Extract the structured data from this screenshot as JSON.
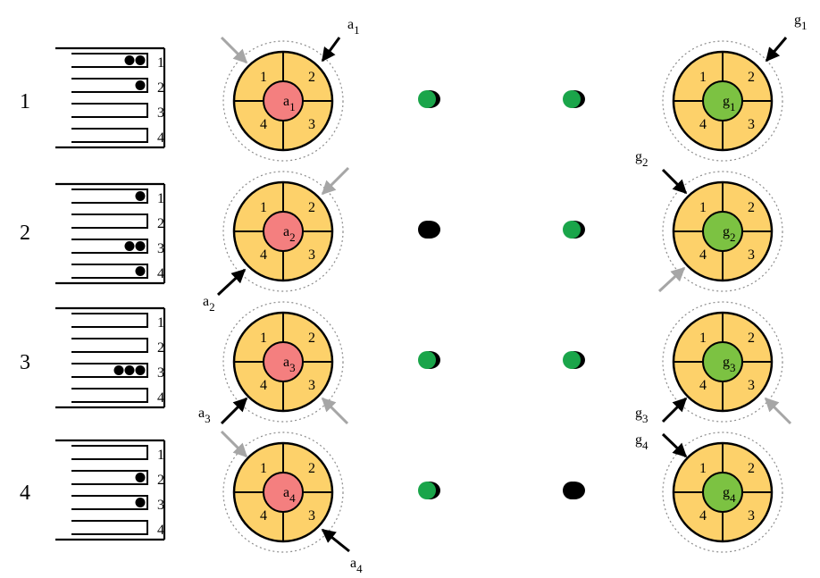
{
  "rows": [
    {
      "label": "1",
      "slots": [
        {
          "number": "1",
          "dots": 2
        },
        {
          "number": "2",
          "dots": 1
        },
        {
          "number": "3",
          "dots": 0
        },
        {
          "number": "4",
          "dots": 0
        }
      ],
      "agent": {
        "var": "a",
        "sub": "1",
        "quadrants": [
          "1",
          "2",
          "3",
          "4"
        ]
      },
      "goal": {
        "var": "g",
        "sub": "1",
        "quadrants": [
          "1",
          "2",
          "3",
          "4"
        ]
      },
      "middle_dots": [
        "green",
        "green"
      ]
    },
    {
      "label": "2",
      "slots": [
        {
          "number": "1",
          "dots": 1
        },
        {
          "number": "2",
          "dots": 0
        },
        {
          "number": "3",
          "dots": 2
        },
        {
          "number": "4",
          "dots": 1
        }
      ],
      "agent": {
        "var": "a",
        "sub": "2",
        "quadrants": [
          "1",
          "2",
          "3",
          "4"
        ]
      },
      "goal": {
        "var": "g",
        "sub": "2",
        "quadrants": [
          "1",
          "2",
          "3",
          "4"
        ]
      },
      "middle_dots": [
        "black",
        "green"
      ]
    },
    {
      "label": "3",
      "slots": [
        {
          "number": "1",
          "dots": 0
        },
        {
          "number": "2",
          "dots": 0
        },
        {
          "number": "3",
          "dots": 3
        },
        {
          "number": "4",
          "dots": 0
        }
      ],
      "agent": {
        "var": "a",
        "sub": "3",
        "quadrants": [
          "1",
          "2",
          "3",
          "4"
        ]
      },
      "goal": {
        "var": "g",
        "sub": "3",
        "quadrants": [
          "1",
          "2",
          "3",
          "4"
        ]
      },
      "middle_dots": [
        "green",
        "green"
      ]
    },
    {
      "label": "4",
      "slots": [
        {
          "number": "1",
          "dots": 0
        },
        {
          "number": "2",
          "dots": 1
        },
        {
          "number": "3",
          "dots": 1
        },
        {
          "number": "4",
          "dots": 0
        }
      ],
      "agent": {
        "var": "a",
        "sub": "4",
        "quadrants": [
          "1",
          "2",
          "3",
          "4"
        ]
      },
      "goal": {
        "var": "g",
        "sub": "4",
        "quadrants": [
          "1",
          "2",
          "3",
          "4"
        ]
      },
      "middle_dots": [
        "green",
        "black"
      ]
    }
  ],
  "colors": {
    "wheel_fill": "#fdd16a",
    "agent_hub": "#f47f7f",
    "goal_hub": "#7cc242",
    "green_dot": "#1aa54a",
    "black": "#000000",
    "gray_arrow": "#a6a6a6",
    "dotted_ring": "#8c8c8c"
  },
  "icons": {
    "black_arrow": "black-arrow-icon",
    "gray_arrow": "gray-arrow-icon"
  }
}
